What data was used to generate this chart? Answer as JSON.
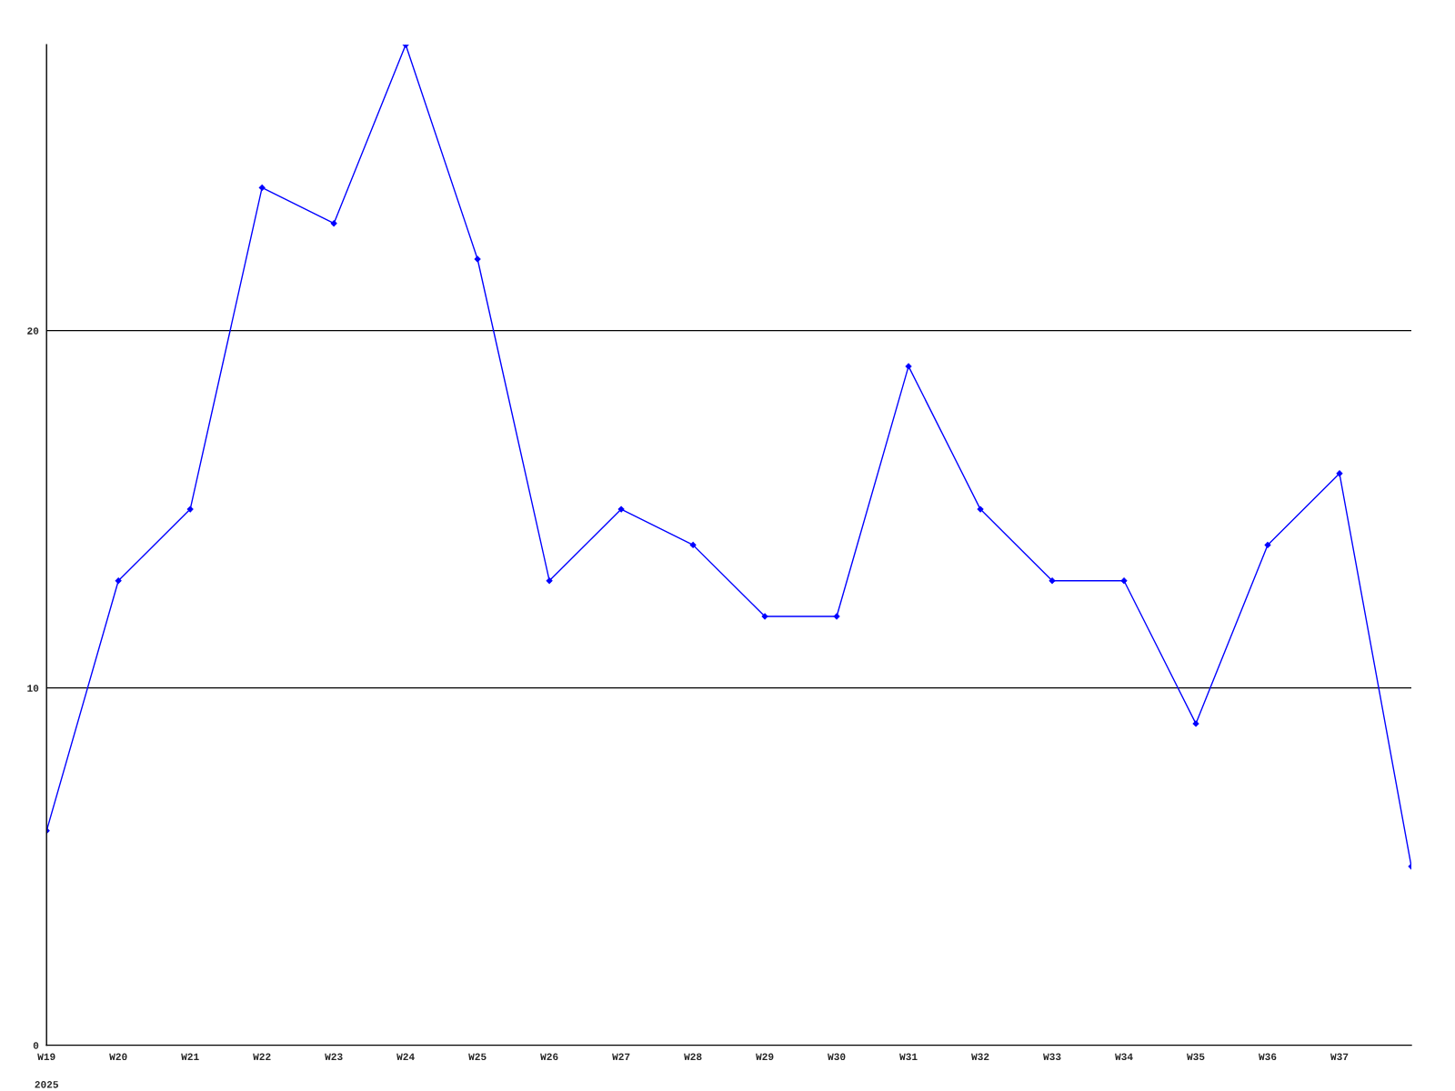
{
  "chart_data": {
    "type": "line",
    "categories": [
      "W19",
      "W20",
      "W21",
      "W22",
      "W23",
      "W24",
      "W25",
      "W26",
      "W27",
      "W28",
      "W29",
      "W30",
      "W31",
      "W32",
      "W33",
      "W34",
      "W35",
      "W36",
      "W37",
      null
    ],
    "series": [
      {
        "color": "#0000ff",
        "values": [
          6,
          13,
          15,
          24,
          23,
          28,
          22,
          13,
          15,
          14,
          12,
          12,
          19,
          15,
          13,
          13,
          9,
          14,
          16,
          5
        ]
      }
    ],
    "ylim": [
      0,
      28
    ],
    "yticks": [
      0,
      10,
      20
    ],
    "grid": "y",
    "marker": "diamond",
    "line_style": "solid",
    "annotations": [
      "2025"
    ]
  }
}
